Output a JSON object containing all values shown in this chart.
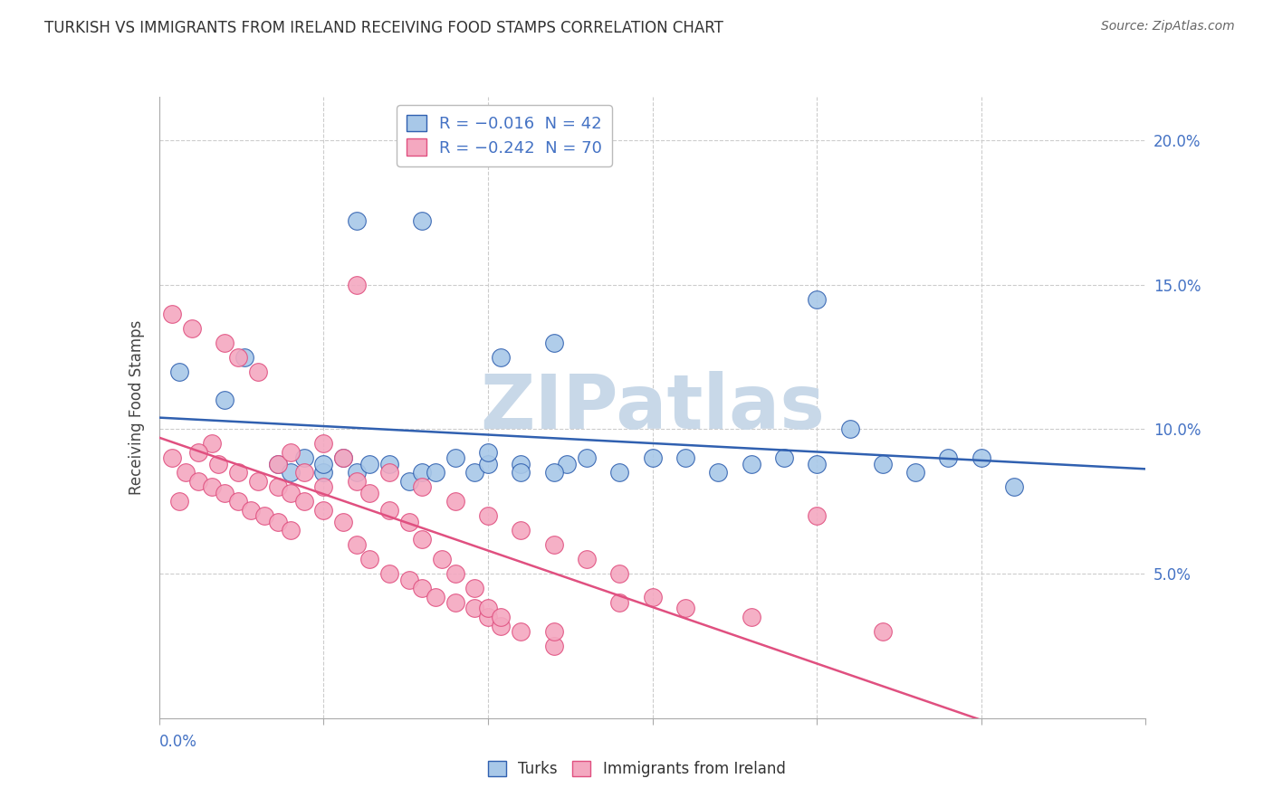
{
  "title": "TURKISH VS IMMIGRANTS FROM IRELAND RECEIVING FOOD STAMPS CORRELATION CHART",
  "source": "Source: ZipAtlas.com",
  "ylabel": "Receiving Food Stamps",
  "ytick_labels": [
    "20.0%",
    "15.0%",
    "10.0%",
    "5.0%"
  ],
  "ytick_values": [
    0.2,
    0.15,
    0.1,
    0.05
  ],
  "xlim": [
    0.0,
    0.15
  ],
  "ylim": [
    0.0,
    0.215
  ],
  "legend_turks": "R = −0.016  N = 42",
  "legend_ireland": "R = −0.242  N = 70",
  "color_turks": "#a8c8e8",
  "color_ireland": "#f4a8c0",
  "color_turks_line": "#3060b0",
  "color_ireland_line": "#e05080",
  "watermark": "ZIPatlas",
  "watermark_color": "#c8d8e8",
  "turks_x": [
    0.003,
    0.01,
    0.013,
    0.018,
    0.02,
    0.022,
    0.025,
    0.028,
    0.03,
    0.032,
    0.035,
    0.038,
    0.04,
    0.042,
    0.045,
    0.048,
    0.05,
    0.052,
    0.055,
    0.06,
    0.062,
    0.065,
    0.07,
    0.075,
    0.08,
    0.085,
    0.09,
    0.095,
    0.1,
    0.105,
    0.11,
    0.115,
    0.12,
    0.125,
    0.03,
    0.04,
    0.05,
    0.025,
    0.055,
    0.06,
    0.1,
    0.13
  ],
  "turks_y": [
    0.12,
    0.11,
    0.125,
    0.088,
    0.085,
    0.09,
    0.085,
    0.09,
    0.085,
    0.088,
    0.088,
    0.082,
    0.085,
    0.085,
    0.09,
    0.085,
    0.088,
    0.125,
    0.088,
    0.13,
    0.088,
    0.09,
    0.085,
    0.09,
    0.09,
    0.085,
    0.088,
    0.09,
    0.088,
    0.1,
    0.088,
    0.085,
    0.09,
    0.09,
    0.172,
    0.172,
    0.092,
    0.088,
    0.085,
    0.085,
    0.145,
    0.08
  ],
  "ireland_x": [
    0.002,
    0.004,
    0.006,
    0.008,
    0.01,
    0.012,
    0.014,
    0.016,
    0.018,
    0.02,
    0.002,
    0.005,
    0.008,
    0.01,
    0.012,
    0.015,
    0.018,
    0.02,
    0.022,
    0.025,
    0.003,
    0.006,
    0.009,
    0.012,
    0.015,
    0.018,
    0.02,
    0.022,
    0.025,
    0.028,
    0.03,
    0.032,
    0.035,
    0.038,
    0.04,
    0.042,
    0.045,
    0.048,
    0.05,
    0.052,
    0.025,
    0.028,
    0.03,
    0.032,
    0.035,
    0.038,
    0.04,
    0.043,
    0.045,
    0.048,
    0.05,
    0.052,
    0.055,
    0.06,
    0.03,
    0.035,
    0.04,
    0.045,
    0.05,
    0.055,
    0.06,
    0.065,
    0.07,
    0.075,
    0.06,
    0.07,
    0.08,
    0.09,
    0.1,
    0.11
  ],
  "ireland_y": [
    0.09,
    0.085,
    0.082,
    0.08,
    0.078,
    0.075,
    0.072,
    0.07,
    0.068,
    0.065,
    0.14,
    0.135,
    0.095,
    0.13,
    0.125,
    0.12,
    0.088,
    0.092,
    0.085,
    0.08,
    0.075,
    0.092,
    0.088,
    0.085,
    0.082,
    0.08,
    0.078,
    0.075,
    0.072,
    0.068,
    0.06,
    0.055,
    0.05,
    0.048,
    0.045,
    0.042,
    0.04,
    0.038,
    0.035,
    0.032,
    0.095,
    0.09,
    0.082,
    0.078,
    0.072,
    0.068,
    0.062,
    0.055,
    0.05,
    0.045,
    0.038,
    0.035,
    0.03,
    0.025,
    0.15,
    0.085,
    0.08,
    0.075,
    0.07,
    0.065,
    0.06,
    0.055,
    0.05,
    0.042,
    0.03,
    0.04,
    0.038,
    0.035,
    0.07,
    0.03
  ]
}
